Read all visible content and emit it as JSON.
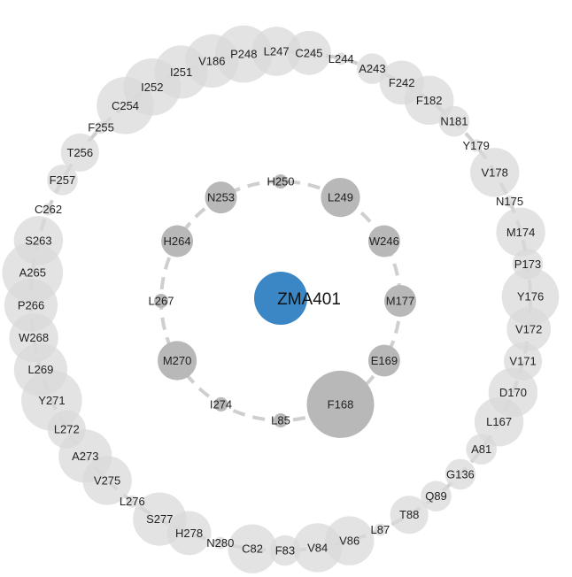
{
  "ligand": {
    "label": "ZMA401",
    "color": "#3b87c6"
  },
  "colors": {
    "inner_node": "#b9b8b9",
    "outer_node": "#dadada",
    "ring_stroke": "#cfcfcf"
  },
  "inner_ring": [
    {
      "label": "H250",
      "size": 1
    },
    {
      "label": "L249",
      "size": 3
    },
    {
      "label": "W246",
      "size": 2
    },
    {
      "label": "M177",
      "size": 2
    },
    {
      "label": "E169",
      "size": 2
    },
    {
      "label": "F168",
      "size": 10
    },
    {
      "label": "L85",
      "size": 1
    },
    {
      "label": "I274",
      "size": 1
    },
    {
      "label": "M270",
      "size": 3
    },
    {
      "label": "L267",
      "size": 1
    },
    {
      "label": "H264",
      "size": 2
    },
    {
      "label": "N253",
      "size": 2
    }
  ],
  "outer_ring": [
    {
      "label": "C245",
      "size": 4
    },
    {
      "label": "L244",
      "size": 1
    },
    {
      "label": "A243",
      "size": 2
    },
    {
      "label": "F242",
      "size": 4
    },
    {
      "label": "F182",
      "size": 5
    },
    {
      "label": "N181",
      "size": 2
    },
    {
      "label": "Y179",
      "size": 1
    },
    {
      "label": "V178",
      "size": 5
    },
    {
      "label": "N175",
      "size": 1
    },
    {
      "label": "M174",
      "size": 5
    },
    {
      "label": "P173",
      "size": 2
    },
    {
      "label": "Y176",
      "size": 7
    },
    {
      "label": "V172",
      "size": 4
    },
    {
      "label": "V171",
      "size": 3
    },
    {
      "label": "D170",
      "size": 5
    },
    {
      "label": "L167",
      "size": 5
    },
    {
      "label": "A81",
      "size": 2
    },
    {
      "label": "G136",
      "size": 2
    },
    {
      "label": "Q89",
      "size": 2
    },
    {
      "label": "T88",
      "size": 3
    },
    {
      "label": "L87",
      "size": 1
    },
    {
      "label": "V86",
      "size": 5
    },
    {
      "label": "V84",
      "size": 5
    },
    {
      "label": "F83",
      "size": 2
    },
    {
      "label": "C82",
      "size": 5
    },
    {
      "label": "N280",
      "size": 1
    },
    {
      "label": "H278",
      "size": 4
    },
    {
      "label": "S277",
      "size": 6
    },
    {
      "label": "L276",
      "size": 1
    },
    {
      "label": "V275",
      "size": 5
    },
    {
      "label": "A273",
      "size": 6
    },
    {
      "label": "L272",
      "size": 3
    },
    {
      "label": "Y271",
      "size": 8
    },
    {
      "label": "L269",
      "size": 6
    },
    {
      "label": "W268",
      "size": 5
    },
    {
      "label": "P266",
      "size": 6
    },
    {
      "label": "A265",
      "size": 8
    },
    {
      "label": "S263",
      "size": 5
    },
    {
      "label": "C262",
      "size": 1
    },
    {
      "label": "F257",
      "size": 2
    },
    {
      "label": "T256",
      "size": 3
    },
    {
      "label": "F255",
      "size": 1
    },
    {
      "label": "C254",
      "size": 7
    },
    {
      "label": "I252",
      "size": 7
    },
    {
      "label": "I251",
      "size": 6
    },
    {
      "label": "V186",
      "size": 6
    },
    {
      "label": "P248",
      "size": 7
    },
    {
      "label": "L247",
      "size": 5
    }
  ]
}
